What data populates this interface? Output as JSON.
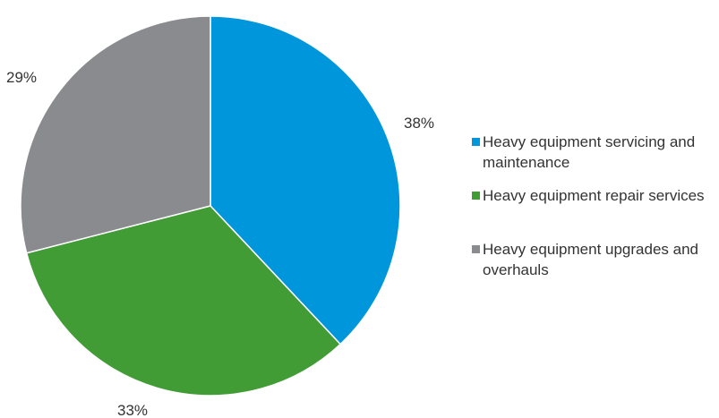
{
  "chart_data": {
    "type": "pie",
    "categories": [
      "Heavy equipment servicing and maintenance",
      "Heavy equipment repair services",
      "Heavy equipment upgrades and overhauls"
    ],
    "values": [
      38,
      33,
      29
    ],
    "value_labels": [
      "38%",
      "33%",
      "29%"
    ],
    "colors": [
      "#0096db",
      "#419c35",
      "#898b8e"
    ],
    "start_angle": "12 o'clock, clockwise",
    "legend_position": "right",
    "title": ""
  }
}
